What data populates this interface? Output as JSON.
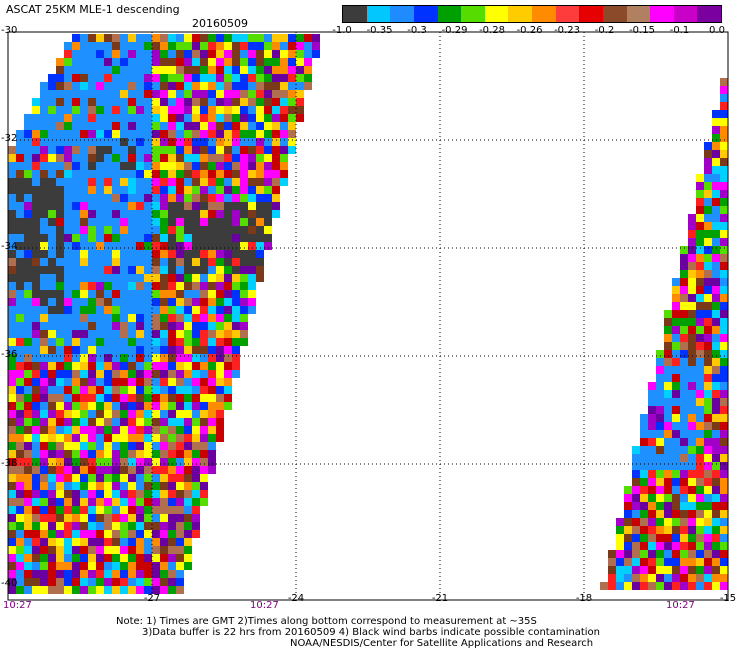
{
  "header": {
    "title": "ASCAT 25KM MLE-1 descending",
    "date": "20160509"
  },
  "colorbar": {
    "labels": [
      "-1.0",
      "-0.35",
      "-0.3",
      "-0.29",
      "-0.28",
      "-0.26",
      "-0.23",
      "-0.2",
      "-0.15",
      "-0.1",
      "0.0"
    ],
    "colors": [
      "#3c3c3c",
      "#00c8ff",
      "#1e8cff",
      "#0032ff",
      "#00a000",
      "#55dd00",
      "#ffff00",
      "#ffcc00",
      "#ff8c00",
      "#ff3c3c",
      "#e60000",
      "#8b4a2a",
      "#b08060",
      "#ff00ff",
      "#c800c8",
      "#7a00a0"
    ]
  },
  "axes": {
    "y_labels": [
      "-30",
      "-32",
      "-34",
      "-36",
      "-38",
      "-40"
    ],
    "x_labels": [
      "-27",
      "-24",
      "-21",
      "-18",
      "-15"
    ],
    "time_labels": [
      "10:27",
      "10:27",
      "10:27"
    ]
  },
  "notes": {
    "line1": "Note: 1) Times are GMT 2)Times along bottom correspond to measurement at ~35S",
    "line2": "3)Data buffer is 22 hrs from 20160509 4) Black wind barbs indicate possible contamination",
    "line3": "NOAA/NESDIS/Center for Satellite Applications and Research"
  },
  "palette": {
    "dark": "#3c3c3c",
    "lightblue": "#1e90ff",
    "cyan": "#00d0ff",
    "blue": "#0032ff",
    "green": "#00a000",
    "lime": "#55dd00",
    "yellow": "#ffff00",
    "gold": "#ffc800",
    "orange": "#ff8c00",
    "red": "#ff2020",
    "darkred": "#c80000",
    "brown": "#7a3a1a",
    "tan": "#b07050",
    "magenta": "#ff00ff",
    "purple": "#a000c8",
    "violet": "#6a00a0"
  }
}
